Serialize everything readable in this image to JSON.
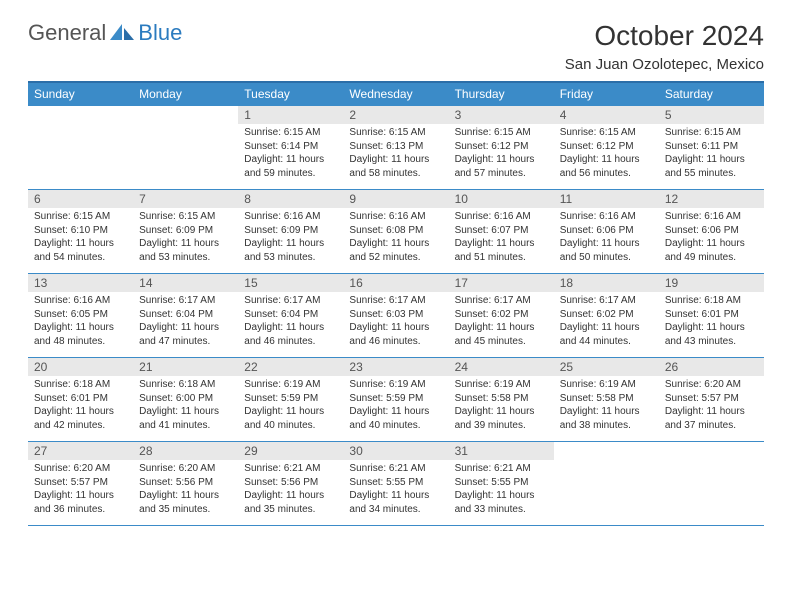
{
  "brand": {
    "part1": "General",
    "part2": "Blue"
  },
  "title": "October 2024",
  "location": "San Juan Ozolotepec, Mexico",
  "colors": {
    "header_bg": "#3b8bc8",
    "header_border": "#2b6ea8",
    "daynum_bg": "#e8e8e8",
    "cell_border": "#3b8bc8",
    "text": "#333333",
    "brand_gray": "#555555",
    "brand_blue": "#2b7bbf"
  },
  "weekdays": [
    "Sunday",
    "Monday",
    "Tuesday",
    "Wednesday",
    "Thursday",
    "Friday",
    "Saturday"
  ],
  "weeks": [
    [
      null,
      null,
      {
        "n": "1",
        "sr": "6:15 AM",
        "ss": "6:14 PM",
        "dl": "11 hours and 59 minutes."
      },
      {
        "n": "2",
        "sr": "6:15 AM",
        "ss": "6:13 PM",
        "dl": "11 hours and 58 minutes."
      },
      {
        "n": "3",
        "sr": "6:15 AM",
        "ss": "6:12 PM",
        "dl": "11 hours and 57 minutes."
      },
      {
        "n": "4",
        "sr": "6:15 AM",
        "ss": "6:12 PM",
        "dl": "11 hours and 56 minutes."
      },
      {
        "n": "5",
        "sr": "6:15 AM",
        "ss": "6:11 PM",
        "dl": "11 hours and 55 minutes."
      }
    ],
    [
      {
        "n": "6",
        "sr": "6:15 AM",
        "ss": "6:10 PM",
        "dl": "11 hours and 54 minutes."
      },
      {
        "n": "7",
        "sr": "6:15 AM",
        "ss": "6:09 PM",
        "dl": "11 hours and 53 minutes."
      },
      {
        "n": "8",
        "sr": "6:16 AM",
        "ss": "6:09 PM",
        "dl": "11 hours and 53 minutes."
      },
      {
        "n": "9",
        "sr": "6:16 AM",
        "ss": "6:08 PM",
        "dl": "11 hours and 52 minutes."
      },
      {
        "n": "10",
        "sr": "6:16 AM",
        "ss": "6:07 PM",
        "dl": "11 hours and 51 minutes."
      },
      {
        "n": "11",
        "sr": "6:16 AM",
        "ss": "6:06 PM",
        "dl": "11 hours and 50 minutes."
      },
      {
        "n": "12",
        "sr": "6:16 AM",
        "ss": "6:06 PM",
        "dl": "11 hours and 49 minutes."
      }
    ],
    [
      {
        "n": "13",
        "sr": "6:16 AM",
        "ss": "6:05 PM",
        "dl": "11 hours and 48 minutes."
      },
      {
        "n": "14",
        "sr": "6:17 AM",
        "ss": "6:04 PM",
        "dl": "11 hours and 47 minutes."
      },
      {
        "n": "15",
        "sr": "6:17 AM",
        "ss": "6:04 PM",
        "dl": "11 hours and 46 minutes."
      },
      {
        "n": "16",
        "sr": "6:17 AM",
        "ss": "6:03 PM",
        "dl": "11 hours and 46 minutes."
      },
      {
        "n": "17",
        "sr": "6:17 AM",
        "ss": "6:02 PM",
        "dl": "11 hours and 45 minutes."
      },
      {
        "n": "18",
        "sr": "6:17 AM",
        "ss": "6:02 PM",
        "dl": "11 hours and 44 minutes."
      },
      {
        "n": "19",
        "sr": "6:18 AM",
        "ss": "6:01 PM",
        "dl": "11 hours and 43 minutes."
      }
    ],
    [
      {
        "n": "20",
        "sr": "6:18 AM",
        "ss": "6:01 PM",
        "dl": "11 hours and 42 minutes."
      },
      {
        "n": "21",
        "sr": "6:18 AM",
        "ss": "6:00 PM",
        "dl": "11 hours and 41 minutes."
      },
      {
        "n": "22",
        "sr": "6:19 AM",
        "ss": "5:59 PM",
        "dl": "11 hours and 40 minutes."
      },
      {
        "n": "23",
        "sr": "6:19 AM",
        "ss": "5:59 PM",
        "dl": "11 hours and 40 minutes."
      },
      {
        "n": "24",
        "sr": "6:19 AM",
        "ss": "5:58 PM",
        "dl": "11 hours and 39 minutes."
      },
      {
        "n": "25",
        "sr": "6:19 AM",
        "ss": "5:58 PM",
        "dl": "11 hours and 38 minutes."
      },
      {
        "n": "26",
        "sr": "6:20 AM",
        "ss": "5:57 PM",
        "dl": "11 hours and 37 minutes."
      }
    ],
    [
      {
        "n": "27",
        "sr": "6:20 AM",
        "ss": "5:57 PM",
        "dl": "11 hours and 36 minutes."
      },
      {
        "n": "28",
        "sr": "6:20 AM",
        "ss": "5:56 PM",
        "dl": "11 hours and 35 minutes."
      },
      {
        "n": "29",
        "sr": "6:21 AM",
        "ss": "5:56 PM",
        "dl": "11 hours and 35 minutes."
      },
      {
        "n": "30",
        "sr": "6:21 AM",
        "ss": "5:55 PM",
        "dl": "11 hours and 34 minutes."
      },
      {
        "n": "31",
        "sr": "6:21 AM",
        "ss": "5:55 PM",
        "dl": "11 hours and 33 minutes."
      },
      null,
      null
    ]
  ],
  "labels": {
    "sunrise": "Sunrise:",
    "sunset": "Sunset:",
    "daylight": "Daylight:"
  }
}
